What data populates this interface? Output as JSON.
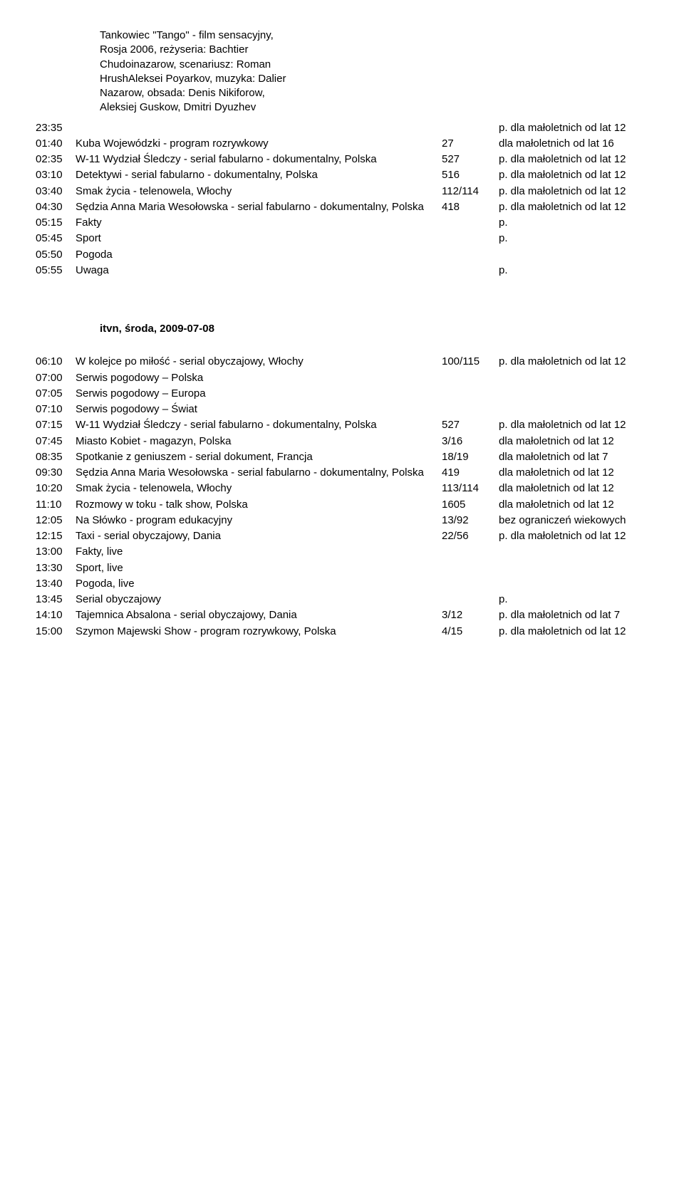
{
  "intro_block": [
    "Tankowiec \"Tango\" - film sensacyjny,",
    "Rosja 2006, reżyseria: Bachtier",
    "Chudoinazarow, scenariusz: Roman",
    "HrushAleksei Poyarkov, muzyka: Dalier",
    "Nazarow, obsada: Denis Nikiforow,",
    "Aleksiej Guskow, Dmitri Dyuzhev"
  ],
  "block1": [
    {
      "time": "23:35",
      "title": "",
      "num": "",
      "rating": "p. dla małoletnich od lat 12"
    },
    {
      "time": "01:40",
      "title": "Kuba Wojewódzki - program rozrywkowy",
      "num": "27",
      "rating": "dla małoletnich od lat 16"
    },
    {
      "time": "02:35",
      "title": "W-11 Wydział Śledczy - serial fabularno - dokumentalny, Polska",
      "num": "527",
      "rating": "p. dla małoletnich od lat 12"
    },
    {
      "time": "03:10",
      "title": "Detektywi - serial fabularno - dokumentalny, Polska",
      "num": "516",
      "rating": "p. dla małoletnich od lat 12"
    },
    {
      "time": "03:40",
      "title": "Smak życia - telenowela, Włochy",
      "num": "112/114",
      "rating": "p. dla małoletnich od lat 12"
    },
    {
      "time": "04:30",
      "title": "Sędzia Anna Maria Wesołowska - serial fabularno - dokumentalny, Polska",
      "num": "418",
      "rating": "p. dla małoletnich od lat 12"
    },
    {
      "time": "05:15",
      "title": "Fakty",
      "num": "",
      "rating": "p."
    },
    {
      "time": "05:45",
      "title": "Sport",
      "num": "",
      "rating": "p."
    },
    {
      "time": "05:50",
      "title": "Pogoda",
      "num": "",
      "rating": ""
    },
    {
      "time": "05:55",
      "title": "Uwaga",
      "num": "",
      "rating": "p."
    }
  ],
  "section2_title": "itvn, środa, 2009-07-08",
  "block2": [
    {
      "time": "06:10",
      "title": "W kolejce po miłość - serial obyczajowy, Włochy",
      "num": "100/115",
      "rating": "p. dla małoletnich od lat 12"
    },
    {
      "time": "07:00",
      "title": "Serwis pogodowy – Polska",
      "num": "",
      "rating": ""
    },
    {
      "time": "07:05",
      "title": "Serwis pogodowy – Europa",
      "num": "",
      "rating": ""
    },
    {
      "time": "07:10",
      "title": "Serwis pogodowy – Świat",
      "num": "",
      "rating": ""
    },
    {
      "time": "07:15",
      "title": "W-11 Wydział Śledczy - serial fabularno - dokumentalny, Polska",
      "num": "527",
      "rating": "p. dla małoletnich od lat 12"
    },
    {
      "time": "07:45",
      "title": "Miasto Kobiet - magazyn, Polska",
      "num": "3/16",
      "rating": "dla małoletnich od lat 12"
    },
    {
      "time": "08:35",
      "title": "Spotkanie z geniuszem - serial dokument, Francja",
      "num": "18/19",
      "rating": "dla małoletnich od lat 7"
    },
    {
      "time": "09:30",
      "title": "Sędzia Anna Maria Wesołowska - serial fabularno - dokumentalny, Polska",
      "num": "419",
      "rating": "dla małoletnich od lat 12"
    },
    {
      "time": "10:20",
      "title": "Smak życia - telenowela, Włochy",
      "num": "113/114",
      "rating": "dla małoletnich od lat 12"
    },
    {
      "time": "11:10",
      "title": "Rozmowy w toku - talk show, Polska",
      "num": "1605",
      "rating": "dla małoletnich od lat 12"
    },
    {
      "time": "12:05",
      "title": "Na Słówko - program edukacyjny",
      "num": "13/92",
      "rating": "bez ograniczeń wiekowych"
    },
    {
      "time": "12:15",
      "title": "Taxi - serial obyczajowy, Dania",
      "num": "22/56",
      "rating": "p. dla małoletnich od lat 12"
    },
    {
      "time": "13:00",
      "title": "Fakty, live",
      "num": "",
      "rating": ""
    },
    {
      "time": "13:30",
      "title": "Sport, live",
      "num": "",
      "rating": ""
    },
    {
      "time": "13:40",
      "title": "Pogoda, live",
      "num": "",
      "rating": ""
    },
    {
      "time": "13:45",
      "title": "Serial obyczajowy",
      "num": "",
      "rating": "p."
    },
    {
      "time": "14:10",
      "title": "Tajemnica Absalona - serial obyczajowy, Dania",
      "num": "3/12",
      "rating": "p. dla małoletnich od lat 7"
    },
    {
      "time": "15:00",
      "title": "Szymon Majewski Show - program rozrywkowy, Polska",
      "num": "4/15",
      "rating": "p. dla małoletnich od lat 12"
    }
  ]
}
